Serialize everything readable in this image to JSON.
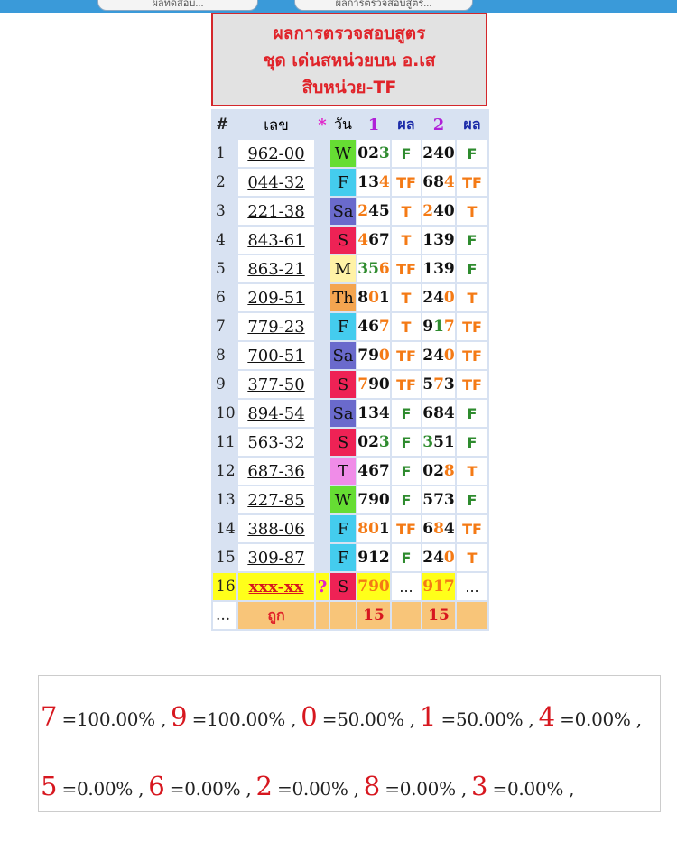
{
  "top_buttons": [
    "ผลทดสอบ...",
    "ผลการตรวจสอบสูตร..."
  ],
  "title_lines": [
    "ผลการตรวจสอบสูตร",
    "ชุด เด่นสหน่วยบน อ.เส",
    "สิบหน่วย-TF"
  ],
  "headers": {
    "idx": "#",
    "num": "เลข",
    "star": "*",
    "day": "วัน",
    "set1": "1",
    "res1": "ผล",
    "set2": "2",
    "res2": "ผล"
  },
  "rows": [
    {
      "idx": "1",
      "num": "962-00",
      "day": "W",
      "day_color": "#66dd33",
      "v1": [
        [
          "0",
          "black"
        ],
        [
          "2",
          "black"
        ],
        [
          "3",
          "green"
        ]
      ],
      "r1": "F",
      "v2": [
        [
          "2",
          "black"
        ],
        [
          "4",
          "black"
        ],
        [
          "0",
          "black"
        ]
      ],
      "r2": "F"
    },
    {
      "idx": "2",
      "num": "044-32",
      "day": "F",
      "day_color": "#44ccee",
      "v1": [
        [
          "1",
          "black"
        ],
        [
          "3",
          "black"
        ],
        [
          "4",
          "orange"
        ]
      ],
      "r1": "TF",
      "v2": [
        [
          "6",
          "black"
        ],
        [
          "8",
          "black"
        ],
        [
          "4",
          "orange"
        ]
      ],
      "r2": "TF"
    },
    {
      "idx": "3",
      "num": "221-38",
      "day": "Sa",
      "day_color": "#6a6acc",
      "v1": [
        [
          "2",
          "orange"
        ],
        [
          "4",
          "black"
        ],
        [
          "5",
          "black"
        ]
      ],
      "r1": "T",
      "v2": [
        [
          "2",
          "orange"
        ],
        [
          "4",
          "black"
        ],
        [
          "0",
          "black"
        ]
      ],
      "r2": "T"
    },
    {
      "idx": "4",
      "num": "843-61",
      "day": "S",
      "day_color": "#ee2255",
      "v1": [
        [
          "4",
          "orange"
        ],
        [
          "6",
          "black"
        ],
        [
          "7",
          "black"
        ]
      ],
      "r1": "T",
      "v2": [
        [
          "1",
          "black"
        ],
        [
          "3",
          "black"
        ],
        [
          "9",
          "black"
        ]
      ],
      "r2": "F"
    },
    {
      "idx": "5",
      "num": "863-21",
      "day": "M",
      "day_color": "#fff2a6",
      "v1": [
        [
          "3",
          "green"
        ],
        [
          "5",
          "green"
        ],
        [
          "6",
          "orange"
        ]
      ],
      "r1": "TF",
      "v2": [
        [
          "1",
          "black"
        ],
        [
          "3",
          "black"
        ],
        [
          "9",
          "black"
        ]
      ],
      "r2": "F"
    },
    {
      "idx": "6",
      "num": "209-51",
      "day": "Th",
      "day_color": "#f4a550",
      "v1": [
        [
          "8",
          "black"
        ],
        [
          "0",
          "orange"
        ],
        [
          "1",
          "black"
        ]
      ],
      "r1": "T",
      "v2": [
        [
          "2",
          "black"
        ],
        [
          "4",
          "black"
        ],
        [
          "0",
          "orange"
        ]
      ],
      "r2": "T"
    },
    {
      "idx": "7",
      "num": "779-23",
      "day": "F",
      "day_color": "#44ccee",
      "v1": [
        [
          "4",
          "black"
        ],
        [
          "6",
          "black"
        ],
        [
          "7",
          "orange"
        ]
      ],
      "r1": "T",
      "v2": [
        [
          "9",
          "black"
        ],
        [
          "1",
          "green"
        ],
        [
          "7",
          "orange"
        ]
      ],
      "r2": "TF"
    },
    {
      "idx": "8",
      "num": "700-51",
      "day": "Sa",
      "day_color": "#6a6acc",
      "v1": [
        [
          "7",
          "black"
        ],
        [
          "9",
          "black"
        ],
        [
          "0",
          "orange"
        ]
      ],
      "r1": "TF",
      "v2": [
        [
          "2",
          "black"
        ],
        [
          "4",
          "black"
        ],
        [
          "0",
          "orange"
        ]
      ],
      "r2": "TF"
    },
    {
      "idx": "9",
      "num": "377-50",
      "day": "S",
      "day_color": "#ee2255",
      "v1": [
        [
          "7",
          "orange"
        ],
        [
          "9",
          "black"
        ],
        [
          "0",
          "black"
        ]
      ],
      "r1": "TF",
      "v2": [
        [
          "5",
          "black"
        ],
        [
          "7",
          "orange"
        ],
        [
          "3",
          "black"
        ]
      ],
      "r2": "TF"
    },
    {
      "idx": "10",
      "num": "894-54",
      "day": "Sa",
      "day_color": "#6a6acc",
      "v1": [
        [
          "1",
          "black"
        ],
        [
          "3",
          "black"
        ],
        [
          "4",
          "black"
        ]
      ],
      "r1": "F",
      "v2": [
        [
          "6",
          "black"
        ],
        [
          "8",
          "black"
        ],
        [
          "4",
          "black"
        ]
      ],
      "r2": "F"
    },
    {
      "idx": "11",
      "num": "563-32",
      "day": "S",
      "day_color": "#ee2255",
      "v1": [
        [
          "0",
          "black"
        ],
        [
          "2",
          "black"
        ],
        [
          "3",
          "green"
        ]
      ],
      "r1": "F",
      "v2": [
        [
          "3",
          "green"
        ],
        [
          "5",
          "black"
        ],
        [
          "1",
          "black"
        ]
      ],
      "r2": "F"
    },
    {
      "idx": "12",
      "num": "687-36",
      "day": "T",
      "day_color": "#f08ce8",
      "v1": [
        [
          "4",
          "black"
        ],
        [
          "6",
          "black"
        ],
        [
          "7",
          "black"
        ]
      ],
      "r1": "F",
      "v2": [
        [
          "0",
          "black"
        ],
        [
          "2",
          "black"
        ],
        [
          "8",
          "orange"
        ]
      ],
      "r2": "T"
    },
    {
      "idx": "13",
      "num": "227-85",
      "day": "W",
      "day_color": "#66dd33",
      "v1": [
        [
          "7",
          "black"
        ],
        [
          "9",
          "black"
        ],
        [
          "0",
          "black"
        ]
      ],
      "r1": "F",
      "v2": [
        [
          "5",
          "black"
        ],
        [
          "7",
          "black"
        ],
        [
          "3",
          "black"
        ]
      ],
      "r2": "F"
    },
    {
      "idx": "14",
      "num": "388-06",
      "day": "F",
      "day_color": "#44ccee",
      "v1": [
        [
          "8",
          "orange"
        ],
        [
          "0",
          "orange"
        ],
        [
          "1",
          "black"
        ]
      ],
      "r1": "TF",
      "v2": [
        [
          "6",
          "black"
        ],
        [
          "8",
          "orange"
        ],
        [
          "4",
          "black"
        ]
      ],
      "r2": "TF"
    },
    {
      "idx": "15",
      "num": "309-87",
      "day": "F",
      "day_color": "#44ccee",
      "v1": [
        [
          "9",
          "black"
        ],
        [
          "1",
          "black"
        ],
        [
          "2",
          "black"
        ]
      ],
      "r1": "F",
      "v2": [
        [
          "2",
          "black"
        ],
        [
          "4",
          "black"
        ],
        [
          "0",
          "orange"
        ]
      ],
      "r2": "T"
    }
  ],
  "pending": {
    "idx": "16",
    "num": "xxx-xx",
    "star": "?",
    "day": "S",
    "day_color": "#ee2255",
    "v1": "790",
    "r1": "...",
    "v2": "917",
    "r2": "..."
  },
  "totals": {
    "dots": "...",
    "label": "ถูก",
    "t1": "15",
    "t2": "15"
  },
  "stats_lines": [
    [
      {
        "d": "7",
        "t": "=100.00% ,"
      },
      {
        "d": "9",
        "t": "=100.00% ,"
      },
      {
        "d": "0",
        "t": "=50.00% ,"
      },
      {
        "d": "1",
        "t": "=50.00% ,"
      },
      {
        "d": "4",
        "t": "=0.00% ,"
      }
    ],
    [
      {
        "d": "5",
        "t": "=0.00% ,"
      },
      {
        "d": "6",
        "t": "=0.00% ,"
      },
      {
        "d": "2",
        "t": "=0.00% ,"
      },
      {
        "d": "8",
        "t": "=0.00% ,"
      },
      {
        "d": "3",
        "t": "=0.00% ,"
      }
    ]
  ],
  "colors": {
    "star": "#e020c8",
    "set_header": "#b021d8",
    "result_header": "#1a2aa8",
    "F": "#2e8b2e",
    "T": "#f47a15",
    "highlight": "#ffff1a"
  }
}
